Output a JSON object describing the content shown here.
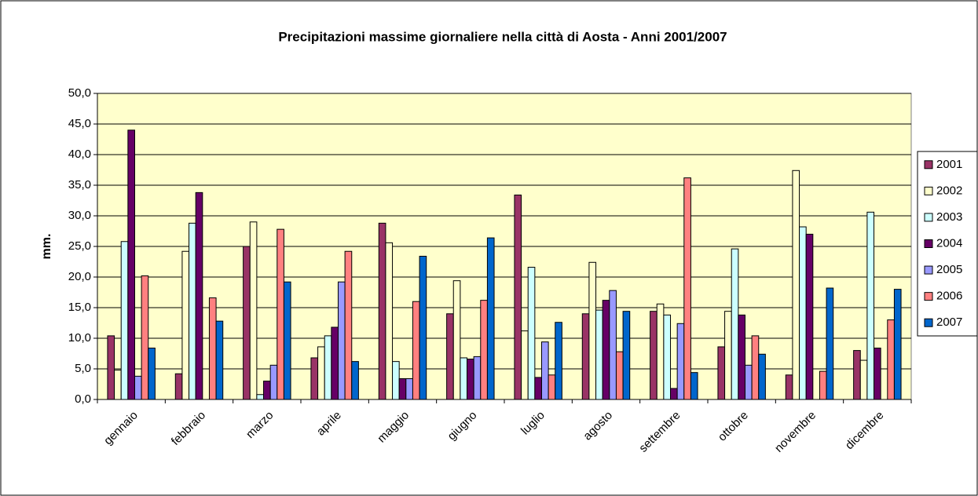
{
  "chart_data": {
    "type": "bar",
    "title": "Precipitazioni massime giornaliere nella città di Aosta - Anni 2001/2007",
    "y_label": "mm.",
    "categories": [
      "gennaio",
      "febbraio",
      "marzo",
      "aprile",
      "maggio",
      "giugno",
      "luglio",
      "agosto",
      "settembre",
      "ottobre",
      "novembre",
      "dicembre"
    ],
    "series": [
      {
        "name": "2001",
        "color": "#993366",
        "values": [
          10.4,
          4.2,
          25.0,
          6.8,
          28.8,
          14.0,
          33.4,
          14.0,
          14.4,
          8.6,
          4.0,
          8.0
        ]
      },
      {
        "name": "2002",
        "color": "#ffffcc",
        "values": [
          4.8,
          24.2,
          29.0,
          8.6,
          25.6,
          19.4,
          11.2,
          22.4,
          15.6,
          14.4,
          37.4,
          6.4
        ]
      },
      {
        "name": "2003",
        "color": "#ccffff",
        "values": [
          25.8,
          28.8,
          0.8,
          10.4,
          6.2,
          6.8,
          21.6,
          14.6,
          13.8,
          24.6,
          28.2,
          30.6
        ]
      },
      {
        "name": "2004",
        "color": "#660066",
        "values": [
          44.0,
          33.8,
          3.0,
          11.8,
          3.4,
          6.6,
          3.6,
          16.2,
          1.8,
          13.8,
          27.0,
          8.4
        ]
      },
      {
        "name": "2005",
        "color": "#9999ff",
        "values": [
          3.8,
          0,
          5.6,
          19.2,
          3.4,
          7.0,
          9.4,
          17.8,
          12.4,
          5.6,
          0,
          0
        ]
      },
      {
        "name": "2006",
        "color": "#ff8080",
        "values": [
          20.2,
          16.6,
          27.8,
          24.2,
          16.0,
          16.2,
          4.0,
          7.8,
          36.2,
          10.4,
          4.6,
          13.0
        ]
      },
      {
        "name": "2007",
        "color": "#0066cc",
        "values": [
          8.4,
          12.8,
          19.2,
          6.2,
          23.4,
          26.4,
          12.6,
          14.4,
          4.4,
          7.4,
          18.2,
          18.0
        ]
      }
    ],
    "ylim": [
      0,
      50
    ],
    "yticks": [
      {
        "value": 0,
        "label": "0,0"
      },
      {
        "value": 5,
        "label": "5,0"
      },
      {
        "value": 10,
        "label": "10,0"
      },
      {
        "value": 15,
        "label": "15,0"
      },
      {
        "value": 20,
        "label": "20,0"
      },
      {
        "value": 25,
        "label": "25,0"
      },
      {
        "value": 30,
        "label": "30,0"
      },
      {
        "value": 35,
        "label": "35,0"
      },
      {
        "value": 40,
        "label": "40,0"
      },
      {
        "value": 45,
        "label": "45,0"
      },
      {
        "value": 50,
        "label": "50,0"
      }
    ],
    "grid": true,
    "plot_background": "#ffffcc",
    "legend": "right"
  }
}
